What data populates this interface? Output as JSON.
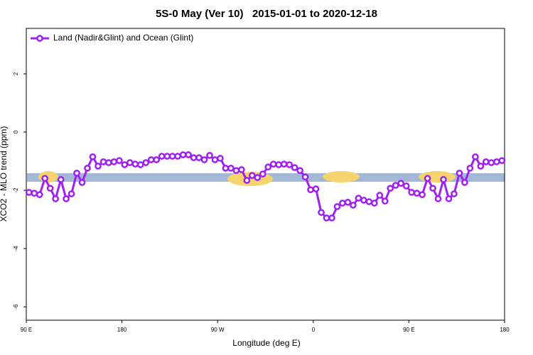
{
  "chart_data": {
    "type": "line",
    "title": "5S-0 May (Ver 10)   2015-01-01 to 2020-12-18",
    "xlabel": "Longitude (deg E)",
    "ylabel": "XCO2 - MLO trend (ppm)",
    "xlim": [
      90,
      540
    ],
    "ylim": [
      -6.46,
      3.56
    ],
    "xticks": [
      {
        "value": 90,
        "label": "90 E"
      },
      180,
      {
        "value": 270,
        "label": "90 W"
      },
      {
        "value": 360,
        "label": "0"
      },
      {
        "value": 450,
        "label": "90 E"
      },
      {
        "value": 540,
        "label": "180"
      }
    ],
    "yticks": [
      2,
      0,
      -2,
      -4,
      -6
    ],
    "legend": "top-left",
    "x": [
      92.5,
      97.5,
      102.5,
      107.5,
      112.5,
      117.5,
      122.5,
      127.5,
      132.5,
      137.5,
      142.5,
      147.5,
      152.5,
      157.5,
      162.5,
      167.5,
      172.5,
      177.5,
      182.5,
      187.5,
      192.5,
      197.5,
      202.5,
      207.5,
      212.5,
      217.5,
      222.5,
      227.5,
      232.5,
      237.5,
      242.5,
      247.5,
      252.5,
      257.5,
      262.5,
      267.5,
      272.5,
      277.5,
      282.5,
      287.5,
      292.5,
      297.5,
      302.5,
      307.5,
      312.5,
      317.5,
      322.5,
      327.5,
      332.5,
      337.5,
      342.5,
      347.5,
      352.5,
      357.5,
      362.5,
      367.5,
      372.5,
      377.5,
      382.5,
      387.5,
      392.5,
      397.5,
      402.5,
      407.5,
      412.5,
      417.5,
      422.5,
      427.5,
      432.5,
      437.5,
      442.5,
      447.5,
      452.5,
      457.5,
      462.5,
      467.5,
      472.5,
      477.5,
      482.5,
      487.5,
      492.5,
      497.5,
      502.5,
      507.5,
      512.5,
      517.5,
      522.5,
      527.5,
      532.5,
      537.5
    ],
    "series": [
      {
        "name": "Land (Nadir&Glint) and Ocean (Glint)",
        "color": "#a020f0",
        "values": [
          -2.07,
          -2.1,
          -2.15,
          -1.59,
          -1.93,
          -2.29,
          -1.63,
          -2.29,
          -2.12,
          -1.41,
          -1.73,
          -1.24,
          -0.85,
          -1.17,
          -1.02,
          -1.05,
          -1.02,
          -0.98,
          -1.12,
          -1.05,
          -1.1,
          -1.12,
          -1.05,
          -0.95,
          -0.95,
          -0.83,
          -0.83,
          -0.83,
          -0.83,
          -0.78,
          -0.78,
          -0.88,
          -0.88,
          -0.95,
          -0.8,
          -0.95,
          -0.9,
          -1.24,
          -1.24,
          -1.32,
          -1.29,
          -1.66,
          -1.49,
          -1.56,
          -1.44,
          -1.2,
          -1.1,
          -1.12,
          -1.1,
          -1.12,
          -1.22,
          -1.32,
          -1.54,
          -1.98,
          -1.95,
          -2.76,
          -2.95,
          -2.95,
          -2.56,
          -2.44,
          -2.41,
          -2.51,
          -2.27,
          -2.34,
          -2.39,
          -2.44,
          -2.17,
          -2.37,
          -1.93,
          -1.83,
          -1.76,
          -1.85,
          -2.07,
          -2.1,
          -2.15,
          -1.59,
          -1.93,
          -2.29,
          -1.63,
          -2.29,
          -2.12,
          -1.41,
          -1.73,
          -1.24,
          -0.85,
          -1.17,
          -1.02,
          -1.05,
          -1.02,
          -0.98
        ]
      }
    ]
  }
}
